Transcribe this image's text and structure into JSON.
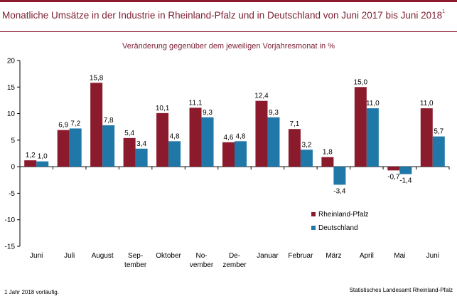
{
  "title": "Monatliche Umsätze in der Industrie in Rheinland-Pfalz und in Deutschland von Juni 2017 bis Juni 2018",
  "title_footnote_mark": "1",
  "footnote": "1 Jahr 2018 vorläufig.",
  "source": "Statistisches Landesamt Rheinland-Pfalz",
  "colors": {
    "rheinland_pfalz": "#8b1a2c",
    "deutschland": "#1f78a8",
    "title": "#7a1f33"
  },
  "chart_data": {
    "type": "bar",
    "title": "Monatliche Umsätze in der Industrie in Rheinland-Pfalz und in Deutschland von Juni 2017 bis Juni 2018",
    "subtitle": "Veränderung gegenüber dem jeweiligen Vorjahresmonat in %",
    "xlabel": "",
    "ylabel": "",
    "ylim": [
      -15,
      20
    ],
    "yticks": [
      20,
      15,
      10,
      5,
      0,
      -5,
      -10,
      -15
    ],
    "grid": false,
    "legend_position": "bottom-right",
    "categories": [
      [
        "Juni"
      ],
      [
        "Juli"
      ],
      [
        "August"
      ],
      [
        "Sep-",
        "tember"
      ],
      [
        "Oktober"
      ],
      [
        "No-",
        "vember"
      ],
      [
        "De-",
        "zember"
      ],
      [
        "Januar"
      ],
      [
        "Februar"
      ],
      [
        "März"
      ],
      [
        "April"
      ],
      [
        "Mai"
      ],
      [
        "Juni"
      ]
    ],
    "series": [
      {
        "name": "Rheinland-Pfalz",
        "values": [
          1.2,
          6.9,
          15.8,
          5.4,
          10.1,
          11.1,
          4.6,
          12.4,
          7.1,
          1.8,
          15.0,
          -0.7,
          11.0
        ],
        "labels": [
          "1,2",
          "6,9",
          "15,8",
          "5,4",
          "10,1",
          "11,1",
          "4,6",
          "12,4",
          "7,1",
          "1,8",
          "15,0",
          "-0,7",
          "11,0"
        ]
      },
      {
        "name": "Deutschland",
        "values": [
          1.0,
          7.2,
          7.8,
          3.4,
          4.8,
          9.3,
          4.8,
          9.3,
          3.2,
          -3.4,
          11.0,
          -1.4,
          5.7
        ],
        "labels": [
          "1,0",
          "7,2",
          "7,8",
          "3,4",
          "4,8",
          "9,3",
          "4,8",
          "9,3",
          "3,2",
          "-3,4",
          "11,0",
          "-1,4",
          "5,7"
        ]
      }
    ]
  }
}
